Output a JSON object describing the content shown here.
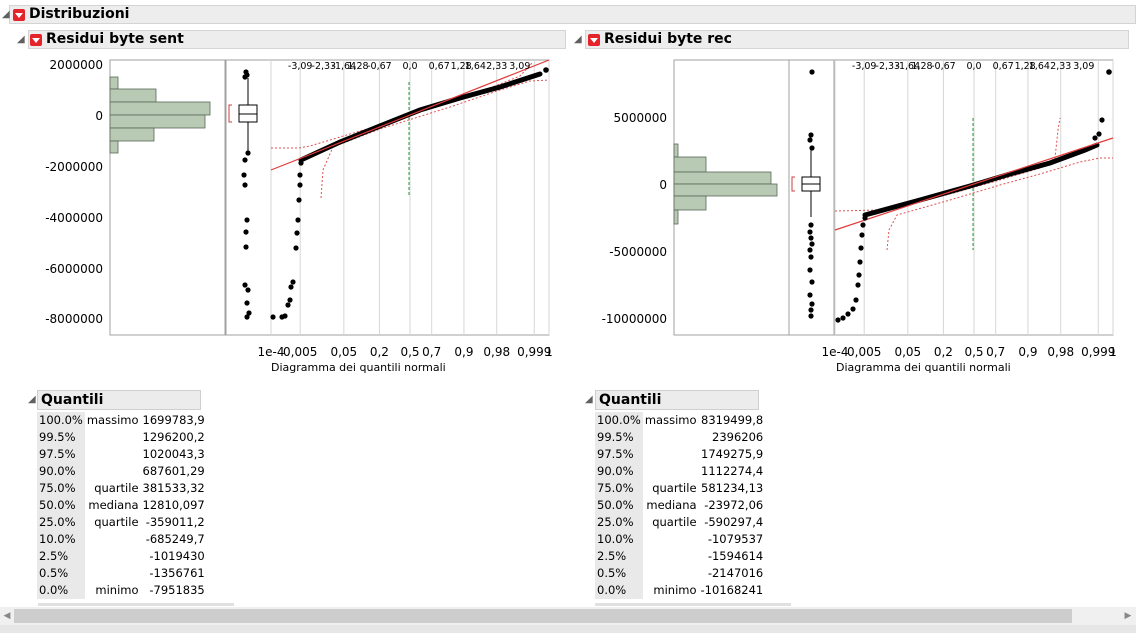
{
  "header": {
    "title": "Distribuzioni"
  },
  "axis_caption": "Diagramma dei quantili normali",
  "prob_ticks_bottom": [
    "1e-4",
    "0,005",
    "0,05",
    "0,2",
    "0,5",
    "0,7",
    "0,9",
    "0,98",
    "0,999",
    "1"
  ],
  "z_ticks_top": [
    "-3,09",
    "-2,33",
    "-1,64",
    "1,28",
    "-0,67",
    "0,0",
    "0,67",
    "1,28",
    "1,64",
    "2,33",
    "3,09"
  ],
  "panels": [
    {
      "title": "Residui byte sent",
      "yticks": [
        "2000000",
        "0",
        "-2000000",
        "-4000000",
        "-6000000",
        "-8000000"
      ],
      "quantiles_title": "Quantili",
      "quantiles": [
        {
          "pct": "100.0%",
          "label": "massimo",
          "value": "1699783,9"
        },
        {
          "pct": "99.5%",
          "label": "",
          "value": "1296200,2"
        },
        {
          "pct": "97.5%",
          "label": "",
          "value": "1020043,3"
        },
        {
          "pct": "90.0%",
          "label": "",
          "value": "687601,29"
        },
        {
          "pct": "75.0%",
          "label": "quartile",
          "value": "381533,32"
        },
        {
          "pct": "50.0%",
          "label": "mediana",
          "value": "12810,097"
        },
        {
          "pct": "25.0%",
          "label": "quartile",
          "value": "-359011,2"
        },
        {
          "pct": "10.0%",
          "label": "",
          "value": "-685249,7"
        },
        {
          "pct": "2.5%",
          "label": "",
          "value": "-1019430"
        },
        {
          "pct": "0.5%",
          "label": "",
          "value": "-1356761"
        },
        {
          "pct": "0.0%",
          "label": "minimo",
          "value": "-7951835"
        }
      ]
    },
    {
      "title": "Residui byte rec",
      "yticks": [
        "5000000",
        "0",
        "-5000000",
        "-10000000"
      ],
      "quantiles_title": "Quantili",
      "quantiles": [
        {
          "pct": "100.0%",
          "label": "massimo",
          "value": "8319499,8"
        },
        {
          "pct": "99.5%",
          "label": "",
          "value": "2396206"
        },
        {
          "pct": "97.5%",
          "label": "",
          "value": "1749275,9"
        },
        {
          "pct": "90.0%",
          "label": "",
          "value": "1112274,4"
        },
        {
          "pct": "75.0%",
          "label": "quartile",
          "value": "581234,13"
        },
        {
          "pct": "50.0%",
          "label": "mediana",
          "value": "-23972,06"
        },
        {
          "pct": "25.0%",
          "label": "quartile",
          "value": "-590297,4"
        },
        {
          "pct": "10.0%",
          "label": "",
          "value": "-1079537"
        },
        {
          "pct": "2.5%",
          "label": "",
          "value": "-1594614"
        },
        {
          "pct": "0.5%",
          "label": "",
          "value": "-2147016"
        },
        {
          "pct": "0.0%",
          "label": "minimo",
          "value": "-10168241"
        }
      ]
    }
  ],
  "colors": {
    "red_button": "#e4242a",
    "hist_fill": "#b8c9b4",
    "fit_line": "#e23b3b",
    "median_line": "#2a9a3a"
  }
}
